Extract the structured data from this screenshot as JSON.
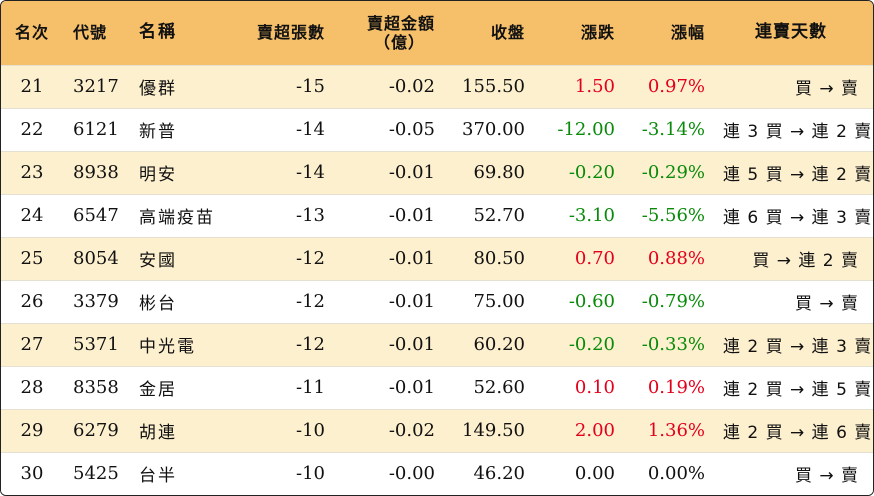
{
  "header": {
    "rank": "名次",
    "code": "代號",
    "name": "名稱",
    "net_sell_shares": "賣超張數",
    "net_sell_amount_line1": "賣超金額",
    "net_sell_amount_line2": "（億）",
    "close": "收盤",
    "change": "漲跌",
    "change_pct": "漲幅",
    "streak": "連賣天數"
  },
  "colors": {
    "header_bg": "#f6c06a",
    "row_alt_bg": "#fdf0cf",
    "up": "#e3001b",
    "down": "#0a8a0a"
  },
  "rows": [
    {
      "rank": "21",
      "code": "3217",
      "name": "優群",
      "shares": "-15",
      "amount": "-0.02",
      "close": "155.50",
      "change": "1.50",
      "pct": "0.97%",
      "dir": "up",
      "streak": "買 → 賣"
    },
    {
      "rank": "22",
      "code": "6121",
      "name": "新普",
      "shares": "-14",
      "amount": "-0.05",
      "close": "370.00",
      "change": "-12.00",
      "pct": "-3.14%",
      "dir": "down",
      "streak": "連 3 買 → 連 2 賣"
    },
    {
      "rank": "23",
      "code": "8938",
      "name": "明安",
      "shares": "-14",
      "amount": "-0.01",
      "close": "69.80",
      "change": "-0.20",
      "pct": "-0.29%",
      "dir": "down",
      "streak": "連 5 買 → 連 2 賣"
    },
    {
      "rank": "24",
      "code": "6547",
      "name": "高端疫苗",
      "shares": "-13",
      "amount": "-0.01",
      "close": "52.70",
      "change": "-3.10",
      "pct": "-5.56%",
      "dir": "down",
      "streak": "連 6 買 → 連 3 賣"
    },
    {
      "rank": "25",
      "code": "8054",
      "name": "安國",
      "shares": "-12",
      "amount": "-0.01",
      "close": "80.50",
      "change": "0.70",
      "pct": "0.88%",
      "dir": "up",
      "streak": "買 → 連 2 賣"
    },
    {
      "rank": "26",
      "code": "3379",
      "name": "彬台",
      "shares": "-12",
      "amount": "-0.01",
      "close": "75.00",
      "change": "-0.60",
      "pct": "-0.79%",
      "dir": "down",
      "streak": "買 → 賣"
    },
    {
      "rank": "27",
      "code": "5371",
      "name": "中光電",
      "shares": "-12",
      "amount": "-0.01",
      "close": "60.20",
      "change": "-0.20",
      "pct": "-0.33%",
      "dir": "down",
      "streak": "連 2 買 → 連 3 賣"
    },
    {
      "rank": "28",
      "code": "8358",
      "name": "金居",
      "shares": "-11",
      "amount": "-0.01",
      "close": "52.60",
      "change": "0.10",
      "pct": "0.19%",
      "dir": "up",
      "streak": "連 2 買 → 連 5 賣"
    },
    {
      "rank": "29",
      "code": "6279",
      "name": "胡連",
      "shares": "-10",
      "amount": "-0.02",
      "close": "149.50",
      "change": "2.00",
      "pct": "1.36%",
      "dir": "up",
      "streak": "連 2 買 → 連 6 賣"
    },
    {
      "rank": "30",
      "code": "5425",
      "name": "台半",
      "shares": "-10",
      "amount": "-0.00",
      "close": "46.20",
      "change": "0.00",
      "pct": "0.00%",
      "dir": "flat",
      "streak": "買 → 賣"
    }
  ]
}
